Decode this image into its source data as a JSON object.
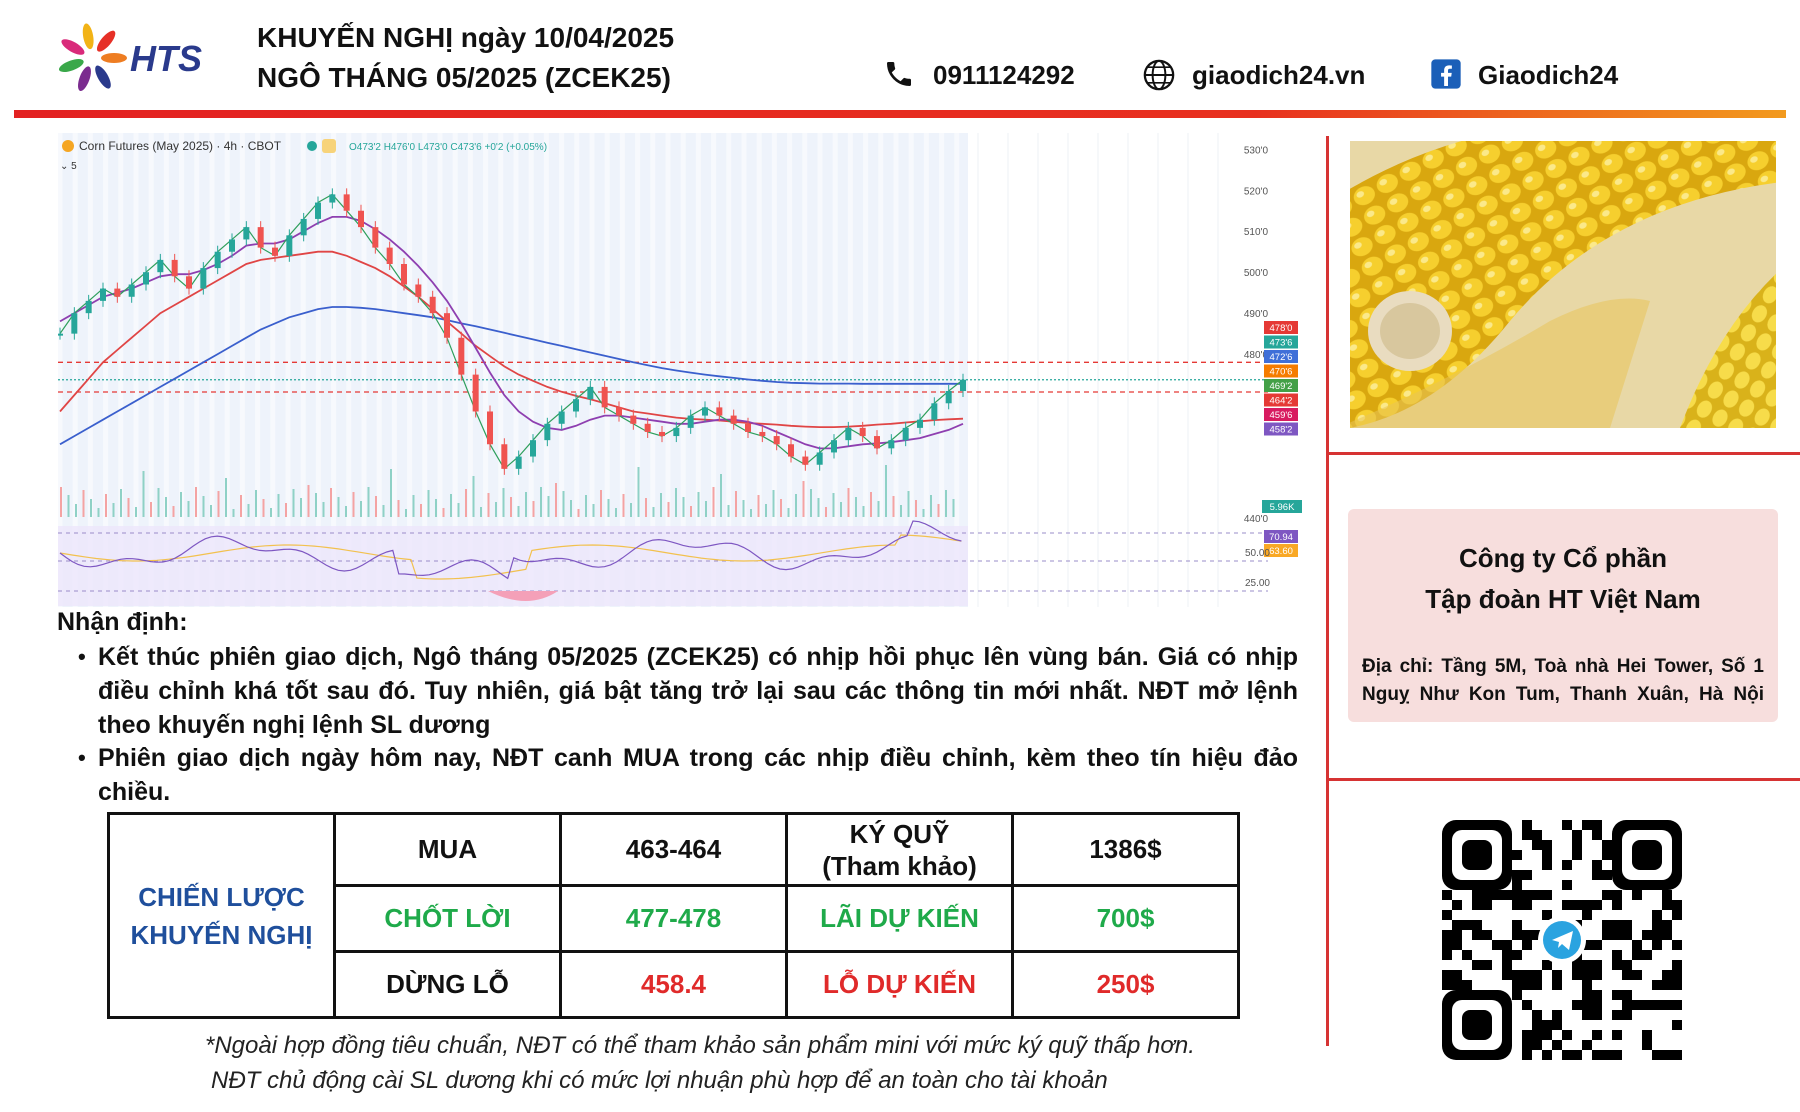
{
  "header": {
    "logo_text": "HTS",
    "title_line1": "KHUYẾN NGHỊ ngày 10/04/2025",
    "title_line2": "NGÔ THÁNG 05/2025 (ZCEK25)",
    "phone": "0911124292",
    "website": "giaodich24.vn",
    "facebook": "Giaodich24"
  },
  "chart_data": {
    "type": "line",
    "title": "Corn Futures (May 2025) · 4h · CBOT",
    "ohlc_text": "O473'2 H476'0 L473'0 C473'6 +0'2 (+0.05%)",
    "indicator_label": "5",
    "y_ticks": [
      "530'0",
      "520'0",
      "510'0",
      "500'0",
      "490'0",
      "480'0",
      "440'0"
    ],
    "price_tags": [
      {
        "text": "478'0",
        "value": 478.0,
        "color": "#e53935"
      },
      {
        "text": "473'6",
        "value": 473.75,
        "color": "#26a69a"
      },
      {
        "text": "472'6",
        "value": 472.75,
        "color": "#3f6fd8"
      },
      {
        "text": "470'6",
        "value": 470.75,
        "color": "#f57c00"
      },
      {
        "text": "469'2",
        "value": 469.25,
        "color": "#43a047"
      },
      {
        "text": "464'2",
        "value": 464.25,
        "color": "#e53935"
      },
      {
        "text": "459'6",
        "value": 459.75,
        "color": "#d81b60"
      },
      {
        "text": "458'2",
        "value": 458.25,
        "color": "#7e57c2"
      }
    ],
    "volume_tag": "5.96K",
    "rsi_ticks": [
      "50.00",
      "25.00"
    ],
    "rsi_tags": [
      {
        "text": "70.94",
        "color": "#7e57c2"
      },
      {
        "text": "63.60",
        "color": "#f9a825"
      }
    ],
    "ylim": [
      440,
      533
    ],
    "price_close": [
      485,
      490,
      493,
      496,
      494,
      497,
      500,
      503,
      499,
      496,
      501,
      505,
      508,
      511,
      506,
      504,
      509,
      513,
      517,
      519,
      515,
      511,
      506,
      502,
      497,
      494,
      490,
      484,
      475,
      466,
      458,
      452,
      455,
      459,
      463,
      466,
      469,
      472,
      467,
      465,
      463,
      461,
      460,
      462,
      465,
      467,
      465,
      463,
      461,
      460,
      458,
      455,
      453,
      456,
      459,
      462,
      460,
      457,
      459,
      462,
      464,
      468,
      471,
      473.75
    ],
    "ma_slow": [
      458,
      460,
      462,
      464,
      466,
      468,
      470,
      472,
      474,
      476,
      478,
      480,
      482,
      484,
      486,
      487.5,
      489,
      490,
      491,
      491.5,
      491.5,
      491.3,
      491,
      490.5,
      490,
      489.5,
      489,
      488.3,
      487.5,
      486.8,
      486,
      485.2,
      484.4,
      483.6,
      482.8,
      482,
      481.2,
      480.4,
      479.6,
      478.8,
      478,
      477.3,
      476.6,
      476,
      475.5,
      475,
      474.6,
      474.2,
      473.8,
      473.5,
      473.2,
      473,
      472.9,
      472.8,
      472.8,
      472.8,
      472.75,
      472.75,
      472.75,
      472.75,
      472.75,
      472.75,
      472.75,
      472.75
    ],
    "ma_mid": [
      466,
      470,
      474,
      478,
      481,
      484,
      487,
      490,
      492,
      494,
      496,
      498,
      500,
      502,
      503,
      503.5,
      504,
      504.5,
      505,
      505,
      504,
      502.5,
      501,
      499,
      496.5,
      494,
      491,
      488,
      485,
      482,
      479.5,
      477,
      475,
      473.5,
      472,
      470.8,
      469.8,
      469,
      468,
      467,
      466,
      465.5,
      465,
      464.5,
      464.2,
      464,
      463.8,
      463.5,
      463.2,
      463,
      462.8,
      462.5,
      462.3,
      462.2,
      462.2,
      462.3,
      462.5,
      462.8,
      463,
      463.3,
      463.6,
      463.9,
      464.1,
      464.25
    ],
    "ma_fast": [
      488,
      490,
      492,
      494,
      495,
      496,
      497.5,
      499,
      499.5,
      499.5,
      500.5,
      502,
      504,
      506.5,
      507,
      507,
      508,
      510,
      512,
      513.5,
      513.5,
      512.5,
      510.5,
      508,
      505,
      501.5,
      497.5,
      493,
      487.5,
      481.5,
      475.5,
      470,
      466,
      463.5,
      462,
      461.5,
      462.5,
      464,
      465,
      465,
      464.5,
      464,
      463.5,
      463,
      463,
      463.5,
      464,
      464,
      463.5,
      462.5,
      461,
      459.5,
      458,
      457,
      457,
      457.5,
      458,
      458.2,
      458.5,
      459,
      459.5,
      460.5,
      461.5,
      463
    ],
    "levels": [
      478.0,
      473.75,
      470.75
    ]
  },
  "analysis": {
    "title": "Nhận định:",
    "bullet1": "Kết thúc phiên giao dịch, Ngô tháng 05/2025 (ZCEK25) có nhịp hồi phục lên vùng bán. Giá có nhịp điều chỉnh khá tốt sau đó. Tuy nhiên, giá bật tăng trở lại sau các thông tin mới nhất. NĐT mở lệnh theo khuyến nghị lệnh SL dương",
    "bullet2": "Phiên giao dịch ngày hôm nay, NĐT canh MUA trong các nhịp điều chỉnh, kèm theo tín hiệu đảo chiều."
  },
  "table": {
    "strategy_line1": "CHIẾN LƯỢC",
    "strategy_line2": "KHUYẾN NGHỊ",
    "buy_label": "MUA",
    "buy_value": "463-464",
    "margin_label_line1": "KÝ QUỸ",
    "margin_label_line2": "(Tham khảo)",
    "margin_value": "1386$",
    "tp_label": "CHỐT LỜI",
    "tp_value": "477-478",
    "expected_profit_label": "LÃI DỰ KIẾN",
    "expected_profit_value": "700$",
    "sl_label": "DỪNG LỖ",
    "sl_value": "458.4",
    "expected_loss_label": "LỖ DỰ KIẾN",
    "expected_loss_value": "250$"
  },
  "notes": {
    "line1": "*Ngoài hợp đồng tiêu chuẩn, NĐT có thể tham khảo sản phẩm mini với mức ký quỹ thấp hơn.",
    "line2": "NĐT chủ động cài SL dương khi có mức lợi nhuận phù hợp để an toàn cho tài khoản"
  },
  "company": {
    "name_line1": "Công ty Cổ phần",
    "name_line2": "Tập đoàn HT Việt Nam",
    "address": "Địa chỉ: Tầng 5M, Toà nhà Hei Tower, Số 1 Nguỵ Như Kon Tum, Thanh Xuân, Hà Nội"
  }
}
